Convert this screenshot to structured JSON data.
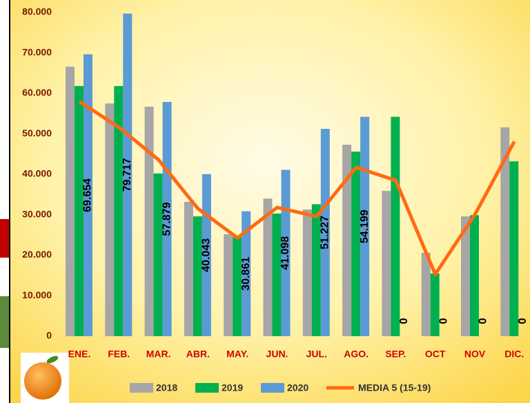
{
  "chart_data": {
    "type": "bar",
    "categories": [
      "ENE.",
      "FEB.",
      "MAR.",
      "ABR.",
      "MAY.",
      "JUN.",
      "JUL.",
      "AGO.",
      "SEP.",
      "OCT",
      "NOV",
      "DIC."
    ],
    "series": [
      {
        "name": "2018",
        "color": "#a6a6a6",
        "values": [
          66600,
          57500,
          56700,
          33200,
          25200,
          34000,
          31300,
          47300,
          35900,
          20600,
          29600,
          51600
        ]
      },
      {
        "name": "2019",
        "color": "#00b050",
        "values": [
          61800,
          61800,
          40200,
          29600,
          24500,
          30300,
          32600,
          45600,
          54200,
          15500,
          29900,
          43200
        ]
      },
      {
        "name": "2020",
        "color": "#5b9bd5",
        "values": [
          69654,
          79717,
          57879,
          40043,
          30861,
          41098,
          51227,
          54199,
          0,
          0,
          0,
          0
        ],
        "value_labels": [
          "69.654",
          "79.717",
          "57.879",
          "40.043",
          "30.861",
          "41.098",
          "51.227",
          "54.199",
          "0",
          "0",
          "0",
          "0"
        ]
      },
      {
        "name": "MEDIA 5 (15-19)",
        "type": "line",
        "color": "#ff6a13",
        "values": [
          58000,
          51600,
          43600,
          31500,
          24300,
          31800,
          29600,
          41700,
          38500,
          15300,
          30000,
          48100
        ]
      }
    ],
    "ylim": [
      0,
      80000
    ],
    "yticks": [
      0,
      {
        "value": 10000,
        "label": "10.000"
      },
      {
        "value": 20000,
        "label": "20.000"
      },
      {
        "value": 30000,
        "label": "30.000"
      },
      {
        "value": 40000,
        "label": "40.000"
      },
      {
        "value": 50000,
        "label": "50.000"
      },
      {
        "value": 60000,
        "label": "60.000"
      },
      {
        "value": 70000,
        "label": "70.000"
      },
      {
        "value": 80000,
        "label": "80.000"
      }
    ],
    "grid": false
  }
}
